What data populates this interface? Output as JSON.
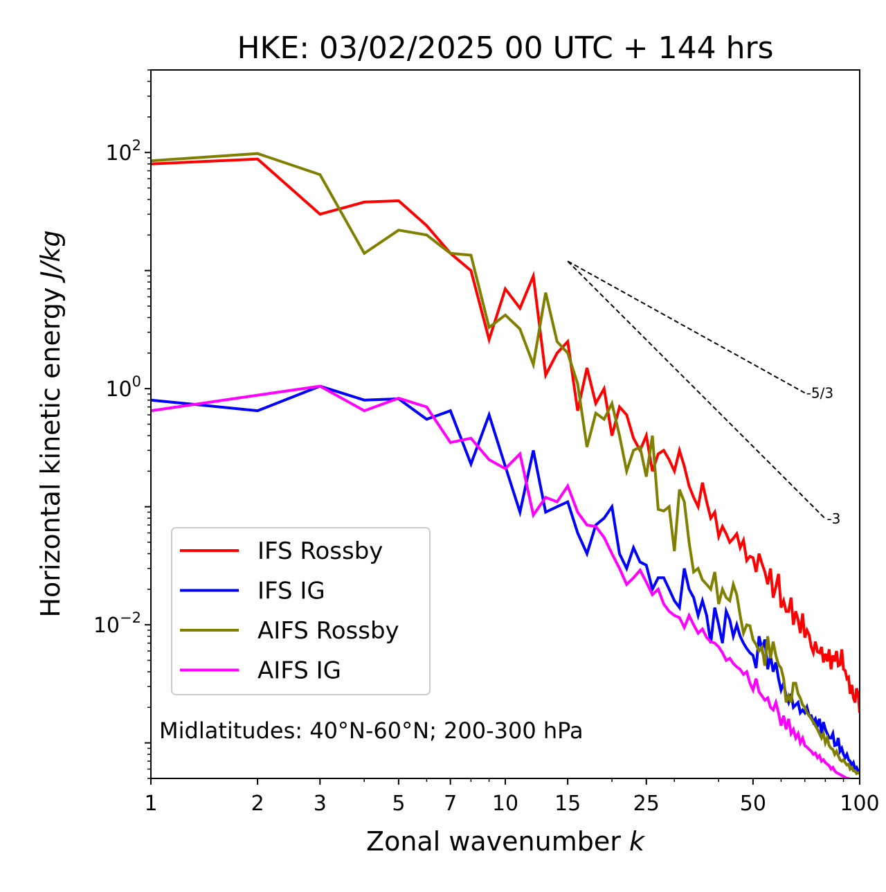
{
  "chart_data": {
    "type": "line",
    "title": "HKE: 03/02/2025 00 UTC + 144 hrs",
    "xlabel": "Zonal wavenumber",
    "xlabel_var": "k",
    "ylabel": "Horizontal kinetic energy",
    "ylabel_unit": "J/kg",
    "xscale": "log",
    "yscale": "log",
    "xlim": [
      1,
      100
    ],
    "ylim": [
      0.0005,
      500
    ],
    "x_ticks": [
      {
        "value": 1,
        "label": "1"
      },
      {
        "value": 2,
        "label": "2"
      },
      {
        "value": 3,
        "label": "3"
      },
      {
        "value": 5,
        "label": "5"
      },
      {
        "value": 7,
        "label": "7"
      },
      {
        "value": 10,
        "label": "10"
      },
      {
        "value": 15,
        "label": "15"
      },
      {
        "value": 25,
        "label": "25"
      },
      {
        "value": 50,
        "label": "50"
      },
      {
        "value": 100,
        "label": "100"
      }
    ],
    "y_ticks": [
      {
        "value": 0.01,
        "base": "10",
        "exp": "−2"
      },
      {
        "value": 1,
        "base": "10",
        "exp": "0"
      },
      {
        "value": 100,
        "base": "10",
        "exp": "2"
      }
    ],
    "grid": false,
    "legend_position": "lower-left",
    "annotation": "Midlatitudes: 40°N-60°N; 200-300 hPa",
    "reference_slopes": [
      {
        "label": "-5/3",
        "slope": -1.6667,
        "x": [
          15,
          70
        ],
        "y": [
          12.0,
          0.92
        ]
      },
      {
        "label": "-3",
        "slope": -3,
        "x": [
          15,
          80
        ],
        "y": [
          12.0,
          0.079
        ]
      }
    ],
    "series": [
      {
        "name": "IFS Rossby",
        "color": "#ff0000",
        "x": [
          1,
          2,
          3,
          4,
          5,
          6,
          7,
          8,
          9,
          10,
          11,
          12,
          13,
          14,
          15,
          16,
          17,
          18,
          19,
          20,
          21,
          22,
          23,
          24,
          25,
          26,
          27,
          28,
          29,
          30,
          31,
          32,
          33,
          34,
          35,
          36,
          37,
          38,
          39,
          40,
          41,
          42,
          43,
          44,
          45,
          46,
          47,
          48,
          49,
          50,
          51,
          52,
          53,
          54,
          55,
          56,
          57,
          58,
          59,
          60,
          61,
          62,
          63,
          64,
          65,
          66,
          67,
          68,
          69,
          70,
          71,
          72,
          73,
          74,
          75,
          76,
          77,
          78,
          79,
          80,
          81,
          82,
          83,
          84,
          85,
          86,
          87,
          88,
          89,
          90,
          91,
          92,
          93,
          94,
          95,
          96,
          97,
          98,
          99,
          100
        ],
        "y": [
          80,
          88,
          30,
          38,
          39,
          24,
          14,
          10,
          2.6,
          7,
          4.8,
          9,
          1.3,
          2,
          2.5,
          0.65,
          1.5,
          0.75,
          1.0,
          0.4,
          0.7,
          0.6,
          0.38,
          0.3,
          0.4,
          0.2,
          0.28,
          0.3,
          0.25,
          0.2,
          0.3,
          0.22,
          0.15,
          0.12,
          0.1,
          0.16,
          0.11,
          0.08,
          0.09,
          0.056,
          0.068,
          0.059,
          0.05,
          0.054,
          0.059,
          0.045,
          0.052,
          0.035,
          0.038,
          0.037,
          0.028,
          0.04,
          0.033,
          0.028,
          0.022,
          0.03,
          0.017,
          0.021,
          0.027,
          0.014,
          0.016,
          0.013,
          0.013,
          0.017,
          0.01,
          0.013,
          0.011,
          0.0085,
          0.0125,
          0.0078,
          0.009,
          0.0082,
          0.0065,
          0.0058,
          0.0072,
          0.0059,
          0.0058,
          0.0065,
          0.0048,
          0.0057,
          0.0049,
          0.0062,
          0.0042,
          0.0055,
          0.0049,
          0.006,
          0.0045,
          0.0046,
          0.0062,
          0.0042,
          0.0041,
          0.0035,
          0.0036,
          0.0026,
          0.0031,
          0.0024,
          0.0022,
          0.0029,
          0.0026,
          0.0018
        ]
      },
      {
        "name": "IFS IG",
        "color": "#0000ff",
        "x": [
          1,
          2,
          3,
          4,
          5,
          6,
          7,
          8,
          9,
          10,
          11,
          12,
          13,
          14,
          15,
          16,
          17,
          18,
          19,
          20,
          21,
          22,
          23,
          24,
          25,
          26,
          27,
          28,
          29,
          30,
          31,
          32,
          33,
          34,
          35,
          36,
          37,
          38,
          39,
          40,
          41,
          42,
          43,
          44,
          45,
          46,
          47,
          48,
          49,
          50,
          51,
          52,
          53,
          54,
          55,
          56,
          57,
          58,
          59,
          60,
          61,
          62,
          63,
          64,
          65,
          66,
          67,
          68,
          69,
          70,
          71,
          72,
          73,
          74,
          75,
          76,
          77,
          78,
          79,
          80,
          81,
          82,
          83,
          84,
          85,
          86,
          87,
          88,
          89,
          90,
          91,
          92,
          93,
          94,
          95,
          96,
          97,
          98,
          99,
          100
        ],
        "y": [
          0.8,
          0.65,
          1.05,
          0.8,
          0.82,
          0.55,
          0.65,
          0.23,
          0.6,
          0.22,
          0.09,
          0.3,
          0.09,
          0.1,
          0.11,
          0.06,
          0.04,
          0.07,
          0.08,
          0.1,
          0.04,
          0.03,
          0.045,
          0.034,
          0.032,
          0.02,
          0.025,
          0.025,
          0.02,
          0.016,
          0.014,
          0.03,
          0.02,
          0.017,
          0.012,
          0.016,
          0.012,
          0.007,
          0.014,
          0.01,
          0.007,
          0.013,
          0.011,
          0.008,
          0.01,
          0.008,
          0.007,
          0.0063,
          0.0058,
          0.0055,
          0.0043,
          0.008,
          0.0062,
          0.0075,
          0.0042,
          0.0055,
          0.004,
          0.0048,
          0.0035,
          0.0028,
          0.0032,
          0.0025,
          0.0022,
          0.0026,
          0.002,
          0.0021,
          0.0022,
          0.0018,
          0.0019,
          0.0018,
          0.002,
          0.0017,
          0.0017,
          0.0015,
          0.0016,
          0.0014,
          0.0016,
          0.0012,
          0.0015,
          0.0013,
          0.0012,
          0.0011,
          0.0011,
          0.0012,
          0.00095,
          0.00096,
          0.0011,
          0.00085,
          0.0009,
          0.0008,
          0.00075,
          0.0008,
          0.00072,
          0.0007,
          0.00065,
          0.00068,
          0.0006,
          0.00062,
          0.00058,
          0.00055
        ]
      },
      {
        "name": "AIFS Rossby",
        "color": "#808000",
        "x": [
          1,
          2,
          3,
          4,
          5,
          6,
          7,
          8,
          9,
          10,
          11,
          12,
          13,
          14,
          15,
          16,
          17,
          18,
          19,
          20,
          21,
          22,
          23,
          24,
          25,
          26,
          27,
          28,
          29,
          30,
          31,
          32,
          33,
          34,
          35,
          36,
          37,
          38,
          39,
          40,
          41,
          42,
          43,
          44,
          45,
          46,
          47,
          48,
          49,
          50,
          51,
          52,
          53,
          54,
          55,
          56,
          57,
          58,
          59,
          60,
          61,
          62,
          63,
          64,
          65,
          66,
          67,
          68,
          69,
          70,
          71,
          72,
          73,
          74,
          75,
          76,
          77,
          78,
          79,
          80,
          81,
          82,
          83,
          84,
          85,
          86,
          87,
          88,
          89,
          90,
          91,
          92,
          93,
          94,
          95,
          96,
          97,
          98,
          99,
          100
        ],
        "y": [
          85,
          98,
          65,
          14,
          22,
          20,
          14,
          13.5,
          3.3,
          4.2,
          3.2,
          1.6,
          6.5,
          2.5,
          2.0,
          1.1,
          0.32,
          0.62,
          0.55,
          0.75,
          0.4,
          0.2,
          0.3,
          0.32,
          0.18,
          0.4,
          0.095,
          0.092,
          0.1,
          0.042,
          0.14,
          0.11,
          0.05,
          0.028,
          0.03,
          0.024,
          0.022,
          0.02,
          0.028,
          0.015,
          0.02,
          0.017,
          0.016,
          0.022,
          0.018,
          0.012,
          0.0085,
          0.01,
          0.0098,
          0.0075,
          0.0068,
          0.006,
          0.0065,
          0.0045,
          0.008,
          0.0052,
          0.0072,
          0.0055,
          0.0046,
          0.0043,
          0.0035,
          0.0022,
          0.0025,
          0.0022,
          0.0032,
          0.0032,
          0.0026,
          0.0024,
          0.0021,
          0.002,
          0.0018,
          0.0017,
          0.0016,
          0.0015,
          0.0014,
          0.0013,
          0.0012,
          0.0011,
          0.0012,
          0.001,
          0.0011,
          0.00095,
          0.0009,
          0.00088,
          0.0008,
          0.00085,
          0.00078,
          0.00072,
          0.0007,
          0.00072,
          0.00068,
          0.00065,
          0.00066,
          0.0006,
          0.00062,
          0.00058,
          0.00058,
          0.00055,
          0.00056,
          0.00055
        ]
      },
      {
        "name": "AIFS IG",
        "color": "#ff00ff",
        "x": [
          1,
          2,
          3,
          4,
          5,
          6,
          7,
          8,
          9,
          10,
          11,
          12,
          13,
          14,
          15,
          16,
          17,
          18,
          19,
          20,
          21,
          22,
          23,
          24,
          25,
          26,
          27,
          28,
          29,
          30,
          31,
          32,
          33,
          34,
          35,
          36,
          37,
          38,
          39,
          40,
          41,
          42,
          43,
          44,
          45,
          46,
          47,
          48,
          49,
          50,
          51,
          52,
          53,
          54,
          55,
          56,
          57,
          58,
          59,
          60,
          61,
          62,
          63,
          64,
          65,
          66,
          67,
          68,
          69,
          70,
          71,
          72,
          73,
          74,
          75,
          76,
          77,
          78,
          79,
          80,
          81,
          82,
          83,
          84,
          85,
          86,
          87,
          88,
          89,
          90,
          91,
          92,
          93,
          94,
          95,
          96,
          97,
          98,
          99,
          100
        ],
        "y": [
          0.65,
          0.88,
          1.05,
          0.65,
          0.83,
          0.7,
          0.35,
          0.38,
          0.25,
          0.21,
          0.28,
          0.085,
          0.12,
          0.11,
          0.15,
          0.09,
          0.07,
          0.068,
          0.055,
          0.04,
          0.03,
          0.022,
          0.025,
          0.029,
          0.023,
          0.018,
          0.02,
          0.015,
          0.013,
          0.012,
          0.0115,
          0.0095,
          0.012,
          0.01,
          0.0085,
          0.0092,
          0.0078,
          0.0072,
          0.007,
          0.0065,
          0.0058,
          0.005,
          0.0052,
          0.0047,
          0.0044,
          0.0042,
          0.0038,
          0.004,
          0.0032,
          0.0028,
          0.0035,
          0.0027,
          0.0025,
          0.0023,
          0.0024,
          0.002,
          0.0019,
          0.0022,
          0.0018,
          0.0014,
          0.0017,
          0.0013,
          0.0016,
          0.0012,
          0.0013,
          0.0011,
          0.0012,
          0.001,
          0.0011,
          0.00095,
          0.00092,
          0.00088,
          0.00085,
          0.0008,
          0.00082,
          0.00075,
          0.00078,
          0.0007,
          0.00072,
          0.00068,
          0.00066,
          0.00064,
          0.0006,
          0.00062,
          0.00058,
          0.00056,
          0.00055,
          0.00054,
          0.00053,
          0.00052,
          0.00051,
          0.0005,
          0.0005,
          0.00049,
          0.00049,
          0.00048,
          0.00048,
          0.00047,
          0.00047,
          0.00046
        ]
      }
    ]
  }
}
